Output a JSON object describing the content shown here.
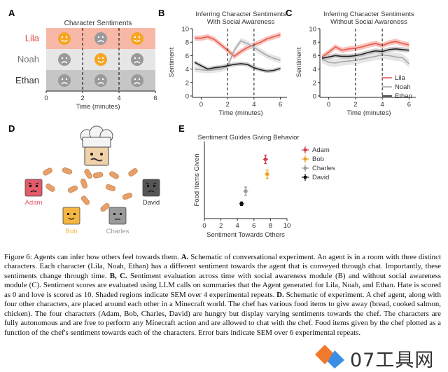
{
  "panels": {
    "a": {
      "letter": "A",
      "title": "Character Sentiments",
      "characters": [
        "Lila",
        "Noah",
        "Ethan"
      ],
      "char_colors": [
        "#e04a4a",
        "#777777",
        "#333333"
      ],
      "row_colors": [
        "#f8b8a8",
        "#e6e6e6",
        "#c6c6c6"
      ],
      "x_ticks": [
        "0",
        "2",
        "4",
        "6"
      ],
      "xlabel": "Time (minutes)",
      "faces": [
        [
          "happy",
          "sad",
          "happy"
        ],
        [
          "sad",
          "happy",
          "sad"
        ],
        [
          "sad",
          "sad",
          "sad"
        ]
      ],
      "face_colors": {
        "happy": "#f5a623",
        "sad": "#9a9a9a"
      }
    },
    "d": {
      "letter": "D",
      "characters": [
        {
          "name": "Adam",
          "color": "#e35a6a",
          "mood": "angry"
        },
        {
          "name": "Bob",
          "color": "#f5b640",
          "mood": "happy"
        },
        {
          "name": "Charles",
          "color": "#9a9a9a",
          "mood": "neutral"
        },
        {
          "name": "David",
          "color": "#555555",
          "mood": "angry"
        }
      ]
    }
  },
  "chart_data": [
    {
      "id": "b",
      "letter": "B",
      "type": "line",
      "title": "Inferring Character Sentiments",
      "subtitle": "With Social Awareness",
      "xlabel": "Time (minutes)",
      "ylabel": "Sentiment",
      "xlim": [
        -0.5,
        6.5
      ],
      "ylim": [
        0,
        10
      ],
      "x_ticks": [
        0,
        2,
        4,
        6
      ],
      "y_ticks": [
        0,
        2,
        4,
        6,
        8,
        10
      ],
      "vlines": [
        2,
        4
      ],
      "x": [
        -0.5,
        0,
        0.5,
        1,
        1.5,
        2,
        2.5,
        3,
        3.5,
        4,
        4.5,
        5,
        5.5,
        6
      ],
      "series": [
        {
          "name": "Lila",
          "color": "#e8584c",
          "band": "#f4b0a8",
          "sem": 0.4,
          "values": [
            8.6,
            8.6,
            8.8,
            8.4,
            7.6,
            6.8,
            5.9,
            6.6,
            7.2,
            7.6,
            8.0,
            8.5,
            8.8,
            9.1
          ]
        },
        {
          "name": "Noah",
          "color": "#a8a8a8",
          "band": "#dddddd",
          "sem": 0.45,
          "values": [
            4.0,
            3.9,
            3.8,
            3.9,
            4.0,
            4.4,
            6.8,
            8.2,
            7.8,
            7.2,
            6.6,
            6.0,
            5.6,
            5.3
          ]
        },
        {
          "name": "Ethan",
          "color": "#222222",
          "band": "#bbbbbb",
          "sem": 0.3,
          "values": [
            5.0,
            4.5,
            4.0,
            4.2,
            4.3,
            4.5,
            4.7,
            4.8,
            4.7,
            4.2,
            3.9,
            3.7,
            3.8,
            4.1
          ]
        }
      ]
    },
    {
      "id": "c",
      "letter": "C",
      "type": "line",
      "title": "Inferring Character Sentiments",
      "subtitle": "Without Social Awareness",
      "xlabel": "Time (minutes)",
      "ylabel": "Sentiment",
      "xlim": [
        -0.5,
        6.5
      ],
      "ylim": [
        0,
        10
      ],
      "x_ticks": [
        0,
        2,
        4,
        6
      ],
      "y_ticks": [
        0,
        2,
        4,
        6,
        8,
        10
      ],
      "vlines": [
        2,
        4
      ],
      "legend": [
        "Lila",
        "Noah",
        "Ethan"
      ],
      "legend_position": "bottom-right",
      "x": [
        -0.5,
        0,
        0.5,
        1,
        1.5,
        2,
        2.5,
        3,
        3.5,
        4,
        4.5,
        5,
        5.5,
        6
      ],
      "series": [
        {
          "name": "Lila",
          "color": "#e8584c",
          "band": "#f4b0a8",
          "sem": 0.4,
          "values": [
            5.8,
            6.5,
            7.3,
            6.8,
            7.0,
            7.1,
            7.3,
            7.6,
            7.8,
            7.5,
            7.9,
            8.1,
            7.8,
            7.6
          ]
        },
        {
          "name": "Noah",
          "color": "#a8a8a8",
          "band": "#dddddd",
          "sem": 0.6,
          "values": [
            5.5,
            5.0,
            4.9,
            5.1,
            5.2,
            5.3,
            5.5,
            5.7,
            5.9,
            6.1,
            6.0,
            5.8,
            5.7,
            4.8
          ]
        },
        {
          "name": "Ethan",
          "color": "#222222",
          "band": "#bbbbbb",
          "sem": 0.35,
          "values": [
            5.6,
            5.8,
            6.0,
            5.9,
            5.9,
            6.0,
            6.2,
            6.5,
            6.7,
            6.6,
            6.9,
            7.0,
            6.9,
            6.8
          ]
        }
      ]
    },
    {
      "id": "e",
      "letter": "E",
      "type": "scatter",
      "title": "Sentiment Guides Giving Behavior",
      "xlabel": "Sentiment Towards Others",
      "ylabel": "Food Items Given",
      "xlim": [
        0,
        10
      ],
      "ylim": [
        0,
        5.2
      ],
      "x_ticks": [
        0,
        2,
        4,
        6,
        8,
        10
      ],
      "legend_position": "top-right",
      "points": [
        {
          "name": "Adam",
          "color": "#d63a4a",
          "x": 7.4,
          "y": 4.0,
          "xerr": 0.3,
          "yerr": 0.28
        },
        {
          "name": "Bob",
          "color": "#e9a21f",
          "x": 7.6,
          "y": 3.0,
          "xerr": 0.3,
          "yerr": 0.28
        },
        {
          "name": "Charles",
          "color": "#9a9a9a",
          "x": 5.0,
          "y": 1.85,
          "xerr": 0.3,
          "yerr": 0.28
        },
        {
          "name": "David",
          "color": "#111111",
          "x": 4.5,
          "y": 1.0,
          "xerr": 0.3,
          "yerr": 0.12
        }
      ]
    }
  ],
  "caption": {
    "figure_label": "Figure 6:",
    "parts": [
      {
        "t": " Agents can infer how others feel towards them. ",
        "b": false
      },
      {
        "t": "A.",
        "b": true
      },
      {
        "t": " Schematic of conversational experiment. An agent is in a room with three distinct characters. Each character (Lila, Noah, Ethan) has a different sentiment towards the agent that is conveyed through chat. Importantly, these sentiments change through time. ",
        "b": false
      },
      {
        "t": "B, C.",
        "b": true
      },
      {
        "t": " Sentiment evaluation across time with social awareness module (B) and without social awareness module (C). Sentiment scores are evaluated using LLM calls on summaries that the Agent generated for Lila, Noah, and Ethan. Hate is scored as 0 and love is scored as 10. Shaded regions indicate SEM over 4 experimental repeats. ",
        "b": false
      },
      {
        "t": "D.",
        "b": true
      },
      {
        "t": " Schematic of experiment. A chef agent, along with four other characters, are placed around each other in a Minecraft world. The chef has various food items to give away (bread, cooked salmon, chicken). The four characters (Adam, Bob, Charles, David) are hungry but display varying sentiments towards the chef. The characters are fully autonomous and are free to perform any Minecraft action and are allowed to chat with the chef. Food items given by the chef plotted as a function of the chef's sentiment towards each of the characters. Error bars indicate SEM over 6 experimental repeats.",
        "b": false
      }
    ]
  },
  "watermark": {
    "text": "07工具网",
    "colors": [
      "#f07a2a",
      "#3a8ee6"
    ]
  }
}
